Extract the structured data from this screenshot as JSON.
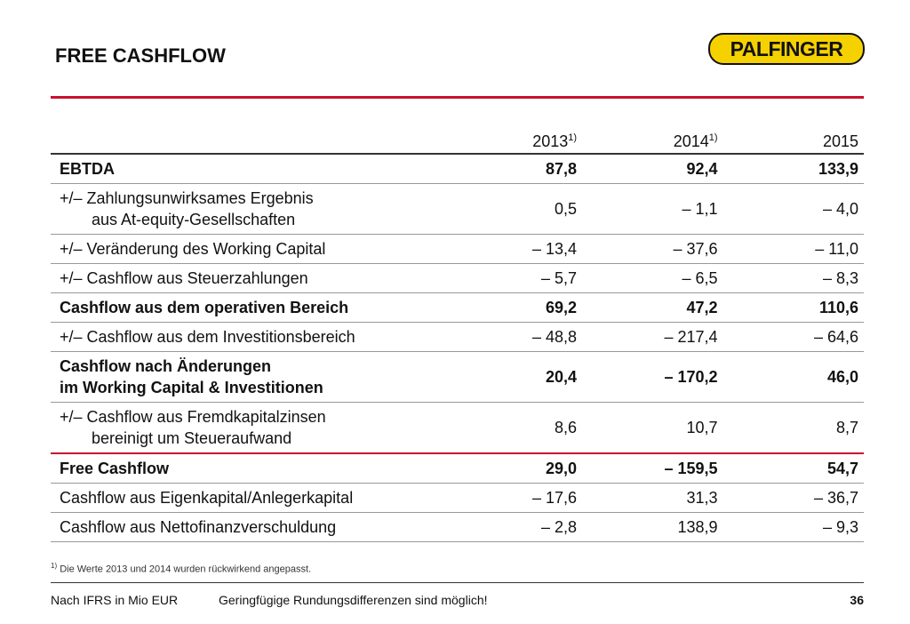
{
  "header": {
    "title": "FREE CASHFLOW",
    "logo": "PALFINGER"
  },
  "table": {
    "columns": [
      {
        "year": "2013",
        "note": "1)"
      },
      {
        "year": "2014",
        "note": "1)"
      },
      {
        "year": "2015"
      }
    ],
    "rows": [
      {
        "label": [
          "EBTDA"
        ],
        "values": [
          "87,8",
          "92,4",
          "133,9"
        ],
        "bold": true
      },
      {
        "label": [
          "+/– Zahlungsunwirksames Ergebnis",
          "aus At-equity-Gesellschaften"
        ],
        "values": [
          "0,5",
          "– 1,1",
          "– 4,0"
        ]
      },
      {
        "label": [
          "+/– Veränderung des Working Capital"
        ],
        "values": [
          "– 13,4",
          "– 37,6",
          "– 11,0"
        ]
      },
      {
        "label": [
          "+/– Cashflow aus Steuerzahlungen"
        ],
        "values": [
          "– 5,7",
          "– 6,5",
          "– 8,3"
        ]
      },
      {
        "label": [
          "Cashflow aus dem operativen Bereich"
        ],
        "values": [
          "69,2",
          "47,2",
          "110,6"
        ],
        "bold": true
      },
      {
        "label": [
          "+/– Cashflow aus dem Investitionsbereich"
        ],
        "values": [
          "– 48,8",
          "– 217,4",
          "– 64,6"
        ]
      },
      {
        "label": [
          "Cashflow nach Änderungen",
          "im Working Capital & Investitionen"
        ],
        "values": [
          "20,4",
          "– 170,2",
          "46,0"
        ],
        "bold": true
      },
      {
        "label": [
          "+/– Cashflow aus Fremdkapitalzinsen",
          "bereinigt um Steueraufwand"
        ],
        "values": [
          "8,6",
          "10,7",
          "8,7"
        ]
      },
      {
        "label": [
          "Free Cashflow"
        ],
        "values": [
          "29,0",
          "– 159,5",
          "54,7"
        ],
        "bold": true,
        "red_rule": true
      },
      {
        "label": [
          "Cashflow aus Eigenkapital/Anlegerkapital"
        ],
        "values": [
          "– 17,6",
          "31,3",
          "– 36,7"
        ]
      },
      {
        "label": [
          "Cashflow aus Nettofinanzverschuldung"
        ],
        "values": [
          "– 2,8",
          "138,9",
          "– 9,3"
        ]
      }
    ]
  },
  "footnote": {
    "mark": "1)",
    "text": "Die Werte 2013 und 2014 wurden rückwirkend angepasst."
  },
  "footer": {
    "unit": "Nach IFRS in Mio EUR",
    "note": "Geringfügige Rundungsdifferenzen sind möglich!",
    "page": "36"
  }
}
